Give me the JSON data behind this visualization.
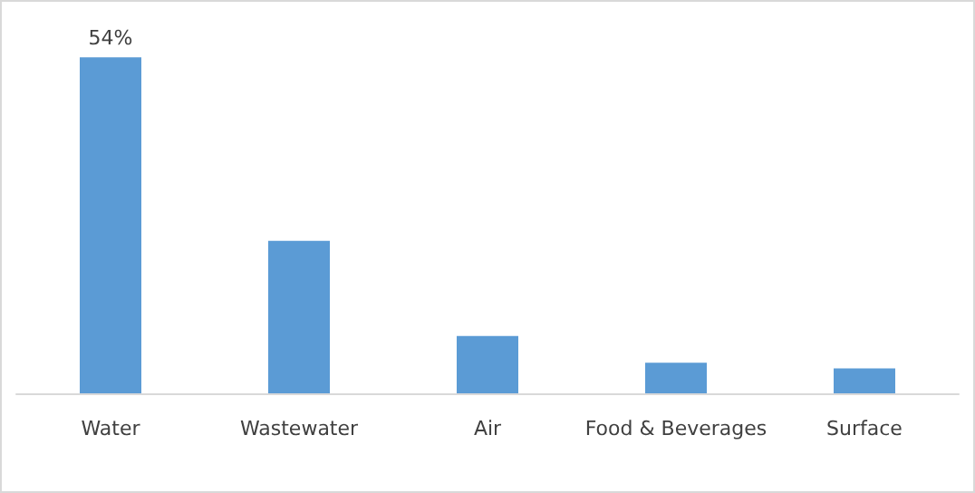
{
  "chart_data": {
    "type": "bar",
    "categories": [
      "Water",
      "Wastewater",
      "Air",
      "Food & Beverages",
      "Surface"
    ],
    "values": [
      54,
      24.5,
      9.2,
      4.9,
      4.0
    ],
    "value_labels": [
      "54%",
      null,
      null,
      null,
      null
    ],
    "color": "#5b9bd5"
  }
}
